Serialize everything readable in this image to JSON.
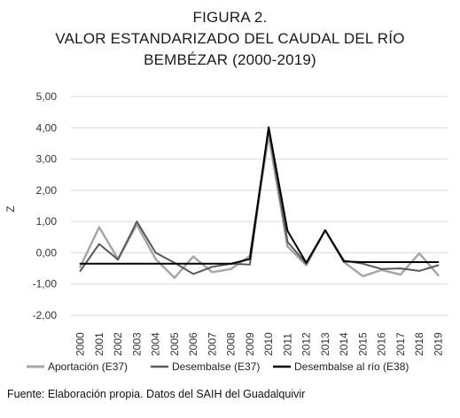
{
  "title_lines": [
    "FIGURA 2.",
    "VALOR ESTANDARIZADO DEL CAUDAL DEL RÍO",
    "BEMBÉZAR (2000-2019)"
  ],
  "source": "Fuente: Elaboración propia. Datos del SAIH del Guadalquivir",
  "colors": {
    "aportacion": "#a6a6a6",
    "desembalse": "#595959",
    "desembalse_rio": "#000000",
    "grid": "#d9d9d9"
  },
  "chart_data": {
    "type": "line",
    "title": "VALOR ESTANDARIZADO DEL CAUDAL DEL RÍO BEMBÉZAR (2000-2019)",
    "xlabel": "",
    "ylabel": "Z",
    "ylim": [
      -2,
      5
    ],
    "yticks": [
      "5,00",
      "4,00",
      "3,00",
      "2,00",
      "1,00",
      "0,00",
      "-1,00",
      "-2,00"
    ],
    "grid": true,
    "legend_position": "bottom",
    "x": [
      "2000",
      "2001",
      "2002",
      "2003",
      "2004",
      "2005",
      "2006",
      "2007",
      "2008",
      "2009",
      "2010",
      "2011",
      "2012",
      "2013",
      "2014",
      "2015",
      "2016",
      "2017",
      "2018",
      "2019"
    ],
    "series": [
      {
        "name": "Aportación (E37)",
        "color_key": "aportacion",
        "width": 2.5,
        "values": [
          -0.45,
          0.82,
          -0.2,
          0.9,
          -0.2,
          -0.8,
          -0.12,
          -0.62,
          -0.52,
          -0.1,
          3.75,
          0.2,
          -0.4,
          0.72,
          -0.3,
          -0.75,
          -0.55,
          -0.7,
          -0.02,
          -0.72
        ]
      },
      {
        "name": "Desembalse (E37)",
        "color_key": "desembalse",
        "width": 2,
        "values": [
          -0.58,
          0.28,
          -0.22,
          1.0,
          0.0,
          -0.32,
          -0.68,
          -0.45,
          -0.35,
          -0.38,
          3.95,
          0.35,
          -0.35,
          0.72,
          -0.25,
          -0.35,
          -0.52,
          -0.5,
          -0.58,
          -0.4
        ]
      },
      {
        "name": "Desembalse al río (E38)",
        "color_key": "desembalse_rio",
        "width": 2,
        "values": [
          -0.35,
          -0.35,
          -0.35,
          -0.35,
          -0.35,
          -0.35,
          -0.35,
          -0.35,
          -0.35,
          -0.2,
          4.02,
          0.7,
          -0.32,
          0.72,
          -0.28,
          -0.3,
          -0.3,
          -0.3,
          -0.3,
          -0.3
        ]
      }
    ]
  }
}
